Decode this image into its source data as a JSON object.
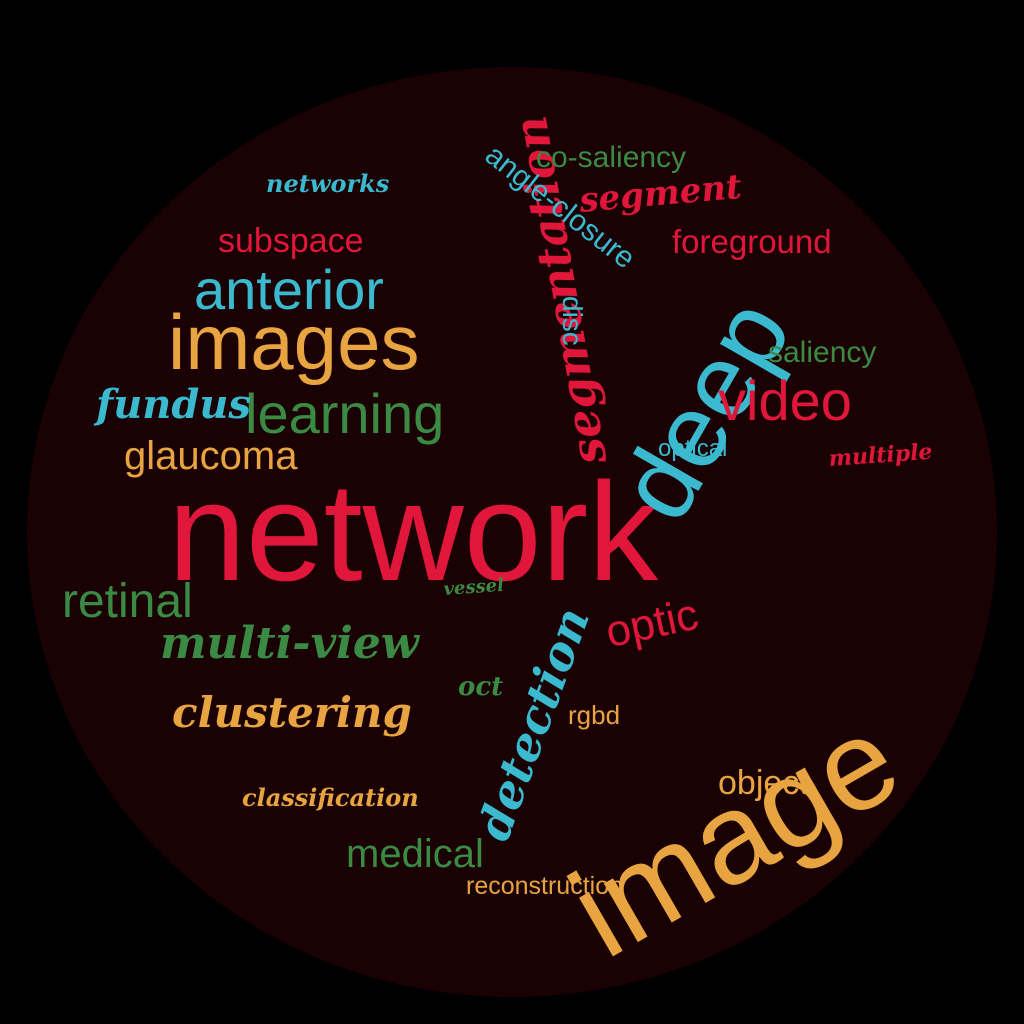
{
  "colors": {
    "background": "#000000",
    "disc": "#1a0204",
    "red": "#e0163a",
    "cyan": "#3bb9cf",
    "green": "#3b8a43",
    "orange": "#e8a440"
  },
  "words": {
    "network": "network",
    "image": "image",
    "deep": "deep",
    "images": "images",
    "segmentation": "segmentation",
    "learning": "learning",
    "anterior": "anterior",
    "video": "video",
    "multi_view": "multi-view",
    "detection": "detection",
    "clustering": "clustering",
    "retinal": "retinal",
    "optic": "optic",
    "medical": "medical",
    "glaucoma": "glaucoma",
    "subspace": "subspace",
    "foreground": "foreground",
    "co_saliency": "co-saliency",
    "segment": "segment",
    "angle_closure": "angle-closure",
    "networks": "networks",
    "fundus": "fundus",
    "saliency": "saliency",
    "disc": "disc",
    "optical": "optical",
    "multiple": "multiple",
    "vessel": "vessel",
    "oct": "oct",
    "rgbd": "rgbd",
    "object": "object",
    "classification": "classification",
    "reconstruction": "reconstruction"
  }
}
